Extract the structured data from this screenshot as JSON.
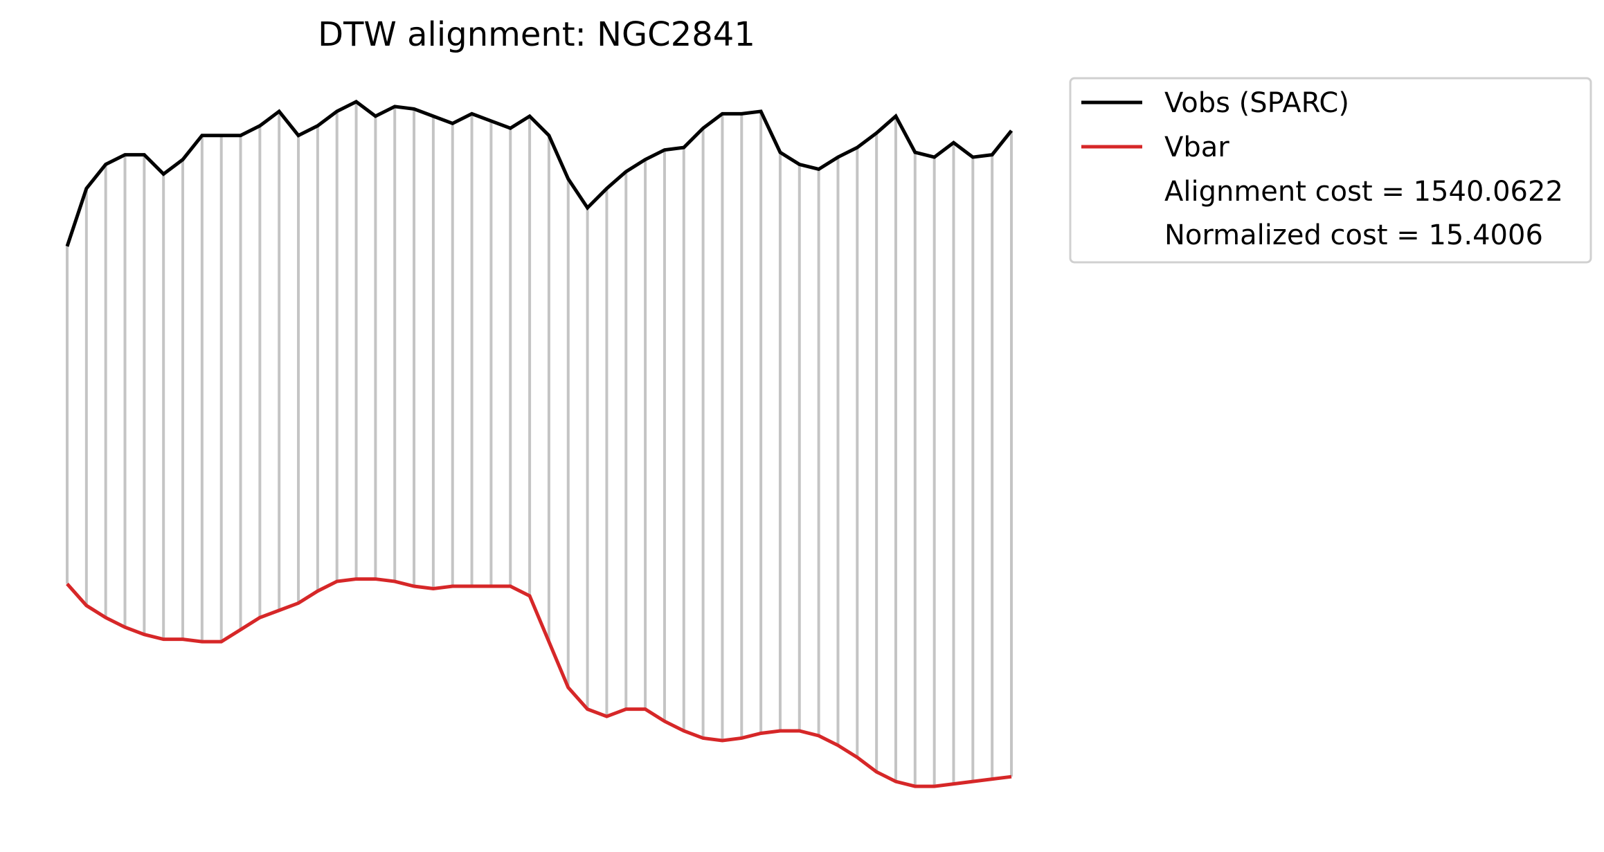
{
  "chart_data": {
    "type": "line",
    "title": "DTW alignment: NGC2841",
    "xlabel": "",
    "ylabel": "",
    "axes_visible": false,
    "grid": false,
    "legend_position": "outside-upper-right",
    "connector_color": "#c4c4c4",
    "x": [
      0,
      1,
      2,
      3,
      4,
      5,
      6,
      7,
      8,
      9,
      10,
      11,
      12,
      13,
      14,
      15,
      16,
      17,
      18,
      19,
      20,
      21,
      22,
      23,
      24,
      25,
      26,
      27,
      28,
      29,
      30,
      31,
      32,
      33,
      34,
      35,
      36,
      37,
      38,
      39,
      40,
      41,
      42,
      43,
      44,
      45,
      46,
      47,
      48,
      49
    ],
    "series": [
      {
        "name": "Vobs (SPARC)",
        "color": "#000000",
        "values": [
          312,
          324,
          329,
          331,
          331,
          327,
          330,
          335,
          335,
          335,
          337,
          340,
          335,
          337,
          340,
          342,
          339,
          341,
          340.5,
          339,
          337.5,
          339.5,
          338,
          336.5,
          339,
          335,
          326,
          320,
          324,
          327.5,
          330,
          332,
          332.5,
          336.5,
          339.5,
          339.5,
          340,
          331.5,
          329,
          328,
          330.5,
          332.5,
          335.5,
          339,
          331.5,
          330.5,
          333.5,
          330.5,
          331,
          336
        ]
      },
      {
        "name": "Vbar",
        "color": "#d62728",
        "values": [
          242,
          237.5,
          235,
          233,
          231.5,
          230.5,
          230.5,
          230,
          230,
          232.5,
          235,
          236.5,
          238,
          240.5,
          242.5,
          243,
          243,
          242.5,
          241.5,
          241,
          241.5,
          241.5,
          241.5,
          241.5,
          239.5,
          230,
          220.5,
          216,
          214.5,
          216,
          216,
          213.5,
          211.5,
          210,
          209.5,
          210,
          211,
          211.5,
          211.5,
          210.5,
          208.5,
          206,
          203,
          201,
          200,
          200,
          200.5,
          201,
          201.5,
          202
        ]
      }
    ],
    "legend_extra": [
      "Alignment cost = 1540.0622",
      "Normalized cost = 15.4006"
    ]
  }
}
